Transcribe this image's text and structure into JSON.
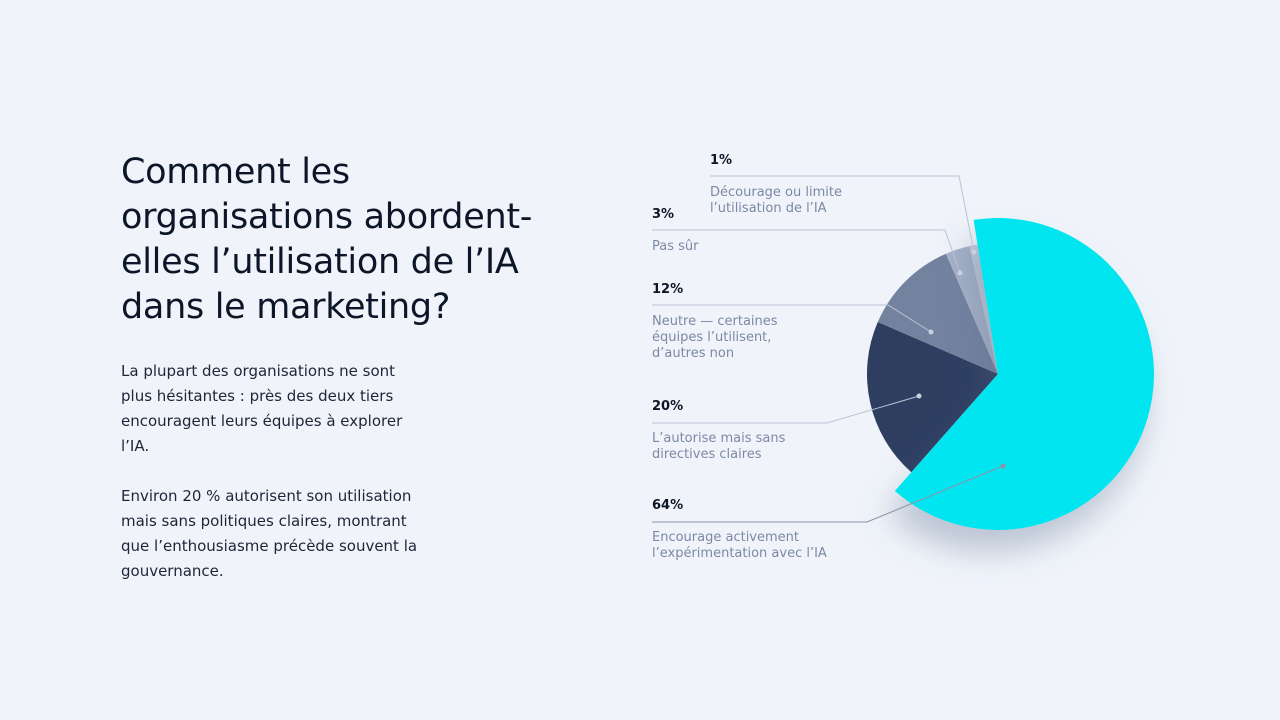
{
  "title_lines": [
    "Comment les",
    "organisations abordent-",
    "elles l’utilisation de l’IA",
    "dans le marketing?"
  ],
  "paragraph1_lines": [
    "La plupart des organisations ne sont",
    "plus hésitantes : près des deux tiers",
    "encouragent leurs équipes à explorer",
    "l’IA."
  ],
  "paragraph2_lines": [
    "Environ 20 % autorisent son utilisation",
    "mais sans politiques claires, montrant",
    "que l’enthousiasme précède souvent la",
    "gouvernance."
  ],
  "chart_data": {
    "type": "pie",
    "start_angle_deg": -9,
    "direction": "clockwise",
    "slices": [
      {
        "pct_label": "64%",
        "value": 64,
        "label_lines": [
          "Encourage activement",
          "l’expérimentation avec l’IA"
        ],
        "color": "#00e5f0",
        "exploded": true
      },
      {
        "pct_label": "20%",
        "value": 20,
        "label_lines": [
          "L’autorise mais sans",
          "directives claires"
        ],
        "color": "#2d3e61"
      },
      {
        "pct_label": "12%",
        "value": 12,
        "label_lines": [
          "Neutre — certaines",
          "équipes l’utilisent,",
          "d’autres non"
        ],
        "color": "#72829f"
      },
      {
        "pct_label": "3%",
        "value": 3,
        "label_lines": [
          "Pas sûr"
        ],
        "color": "#a6b2c8"
      },
      {
        "pct_label": "1%",
        "value": 1,
        "label_lines": [
          "Décourage ou limite",
          "l’utilisation de l’IA"
        ],
        "color": "#c3cbdb"
      }
    ]
  }
}
